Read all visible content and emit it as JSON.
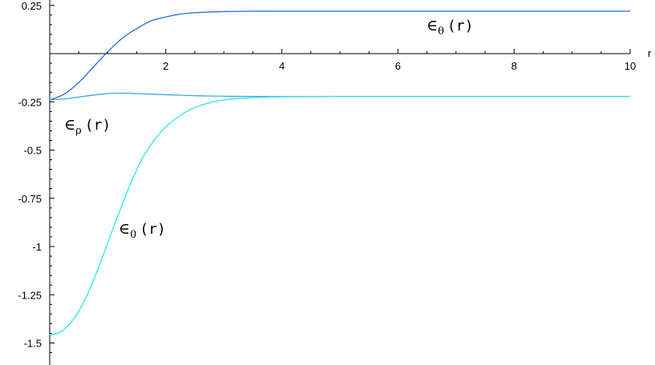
{
  "chart_data": {
    "type": "line",
    "title": "",
    "xlabel": "r",
    "ylabel": "",
    "xlim": [
      0,
      10
    ],
    "ylim": [
      -1.6,
      0.25
    ],
    "grid": false,
    "legend": "none",
    "x_ticks": [
      "2",
      "4",
      "6",
      "8",
      "10"
    ],
    "x_tick_values": [
      2,
      4,
      6,
      8,
      10
    ],
    "y_ticks": [
      "0.25",
      "-0.25",
      "-0.5",
      "-0.75",
      "-1",
      "-1.25",
      "-1.5"
    ],
    "y_tick_values": [
      0.25,
      -0.25,
      -0.5,
      -0.75,
      -1,
      -1.25,
      -1.5
    ],
    "series": [
      {
        "label_symbol": "∈",
        "label_sub": "θ",
        "label_arg": "(r)",
        "color": "#1f6fd6",
        "x": [
          0,
          0.25,
          0.5,
          0.75,
          1.0,
          1.25,
          1.5,
          1.75,
          2.0,
          2.25,
          2.5,
          3.0,
          3.5,
          4,
          5,
          6,
          8,
          10
        ],
        "y": [
          -0.24,
          -0.21,
          -0.15,
          -0.07,
          0.01,
          0.08,
          0.13,
          0.17,
          0.19,
          0.205,
          0.212,
          0.218,
          0.22,
          0.22,
          0.22,
          0.22,
          0.22,
          0.22
        ]
      },
      {
        "label_symbol": "∈",
        "label_sub": "ρ",
        "label_arg": "(r)",
        "color": "#3ea8e8",
        "x": [
          0,
          0.25,
          0.5,
          0.75,
          1.0,
          1.25,
          1.5,
          2.0,
          2.5,
          3.0,
          3.5,
          4,
          6,
          8,
          10
        ],
        "y": [
          -0.24,
          -0.235,
          -0.225,
          -0.215,
          -0.207,
          -0.205,
          -0.207,
          -0.213,
          -0.218,
          -0.221,
          -0.222,
          -0.222,
          -0.222,
          -0.222,
          -0.222
        ]
      },
      {
        "label_symbol": "∈",
        "label_sub": "0",
        "label_arg": "(r)",
        "color": "#2ee6ee",
        "x": [
          0,
          0.2,
          0.4,
          0.6,
          0.8,
          1.0,
          1.2,
          1.4,
          1.6,
          1.8,
          2.0,
          2.25,
          2.5,
          2.75,
          3.0,
          3.5,
          4,
          5,
          6,
          8,
          10
        ],
        "y": [
          -1.46,
          -1.44,
          -1.38,
          -1.28,
          -1.14,
          -0.98,
          -0.82,
          -0.67,
          -0.54,
          -0.45,
          -0.38,
          -0.32,
          -0.28,
          -0.255,
          -0.24,
          -0.228,
          -0.224,
          -0.222,
          -0.222,
          -0.222,
          -0.222
        ]
      }
    ]
  }
}
